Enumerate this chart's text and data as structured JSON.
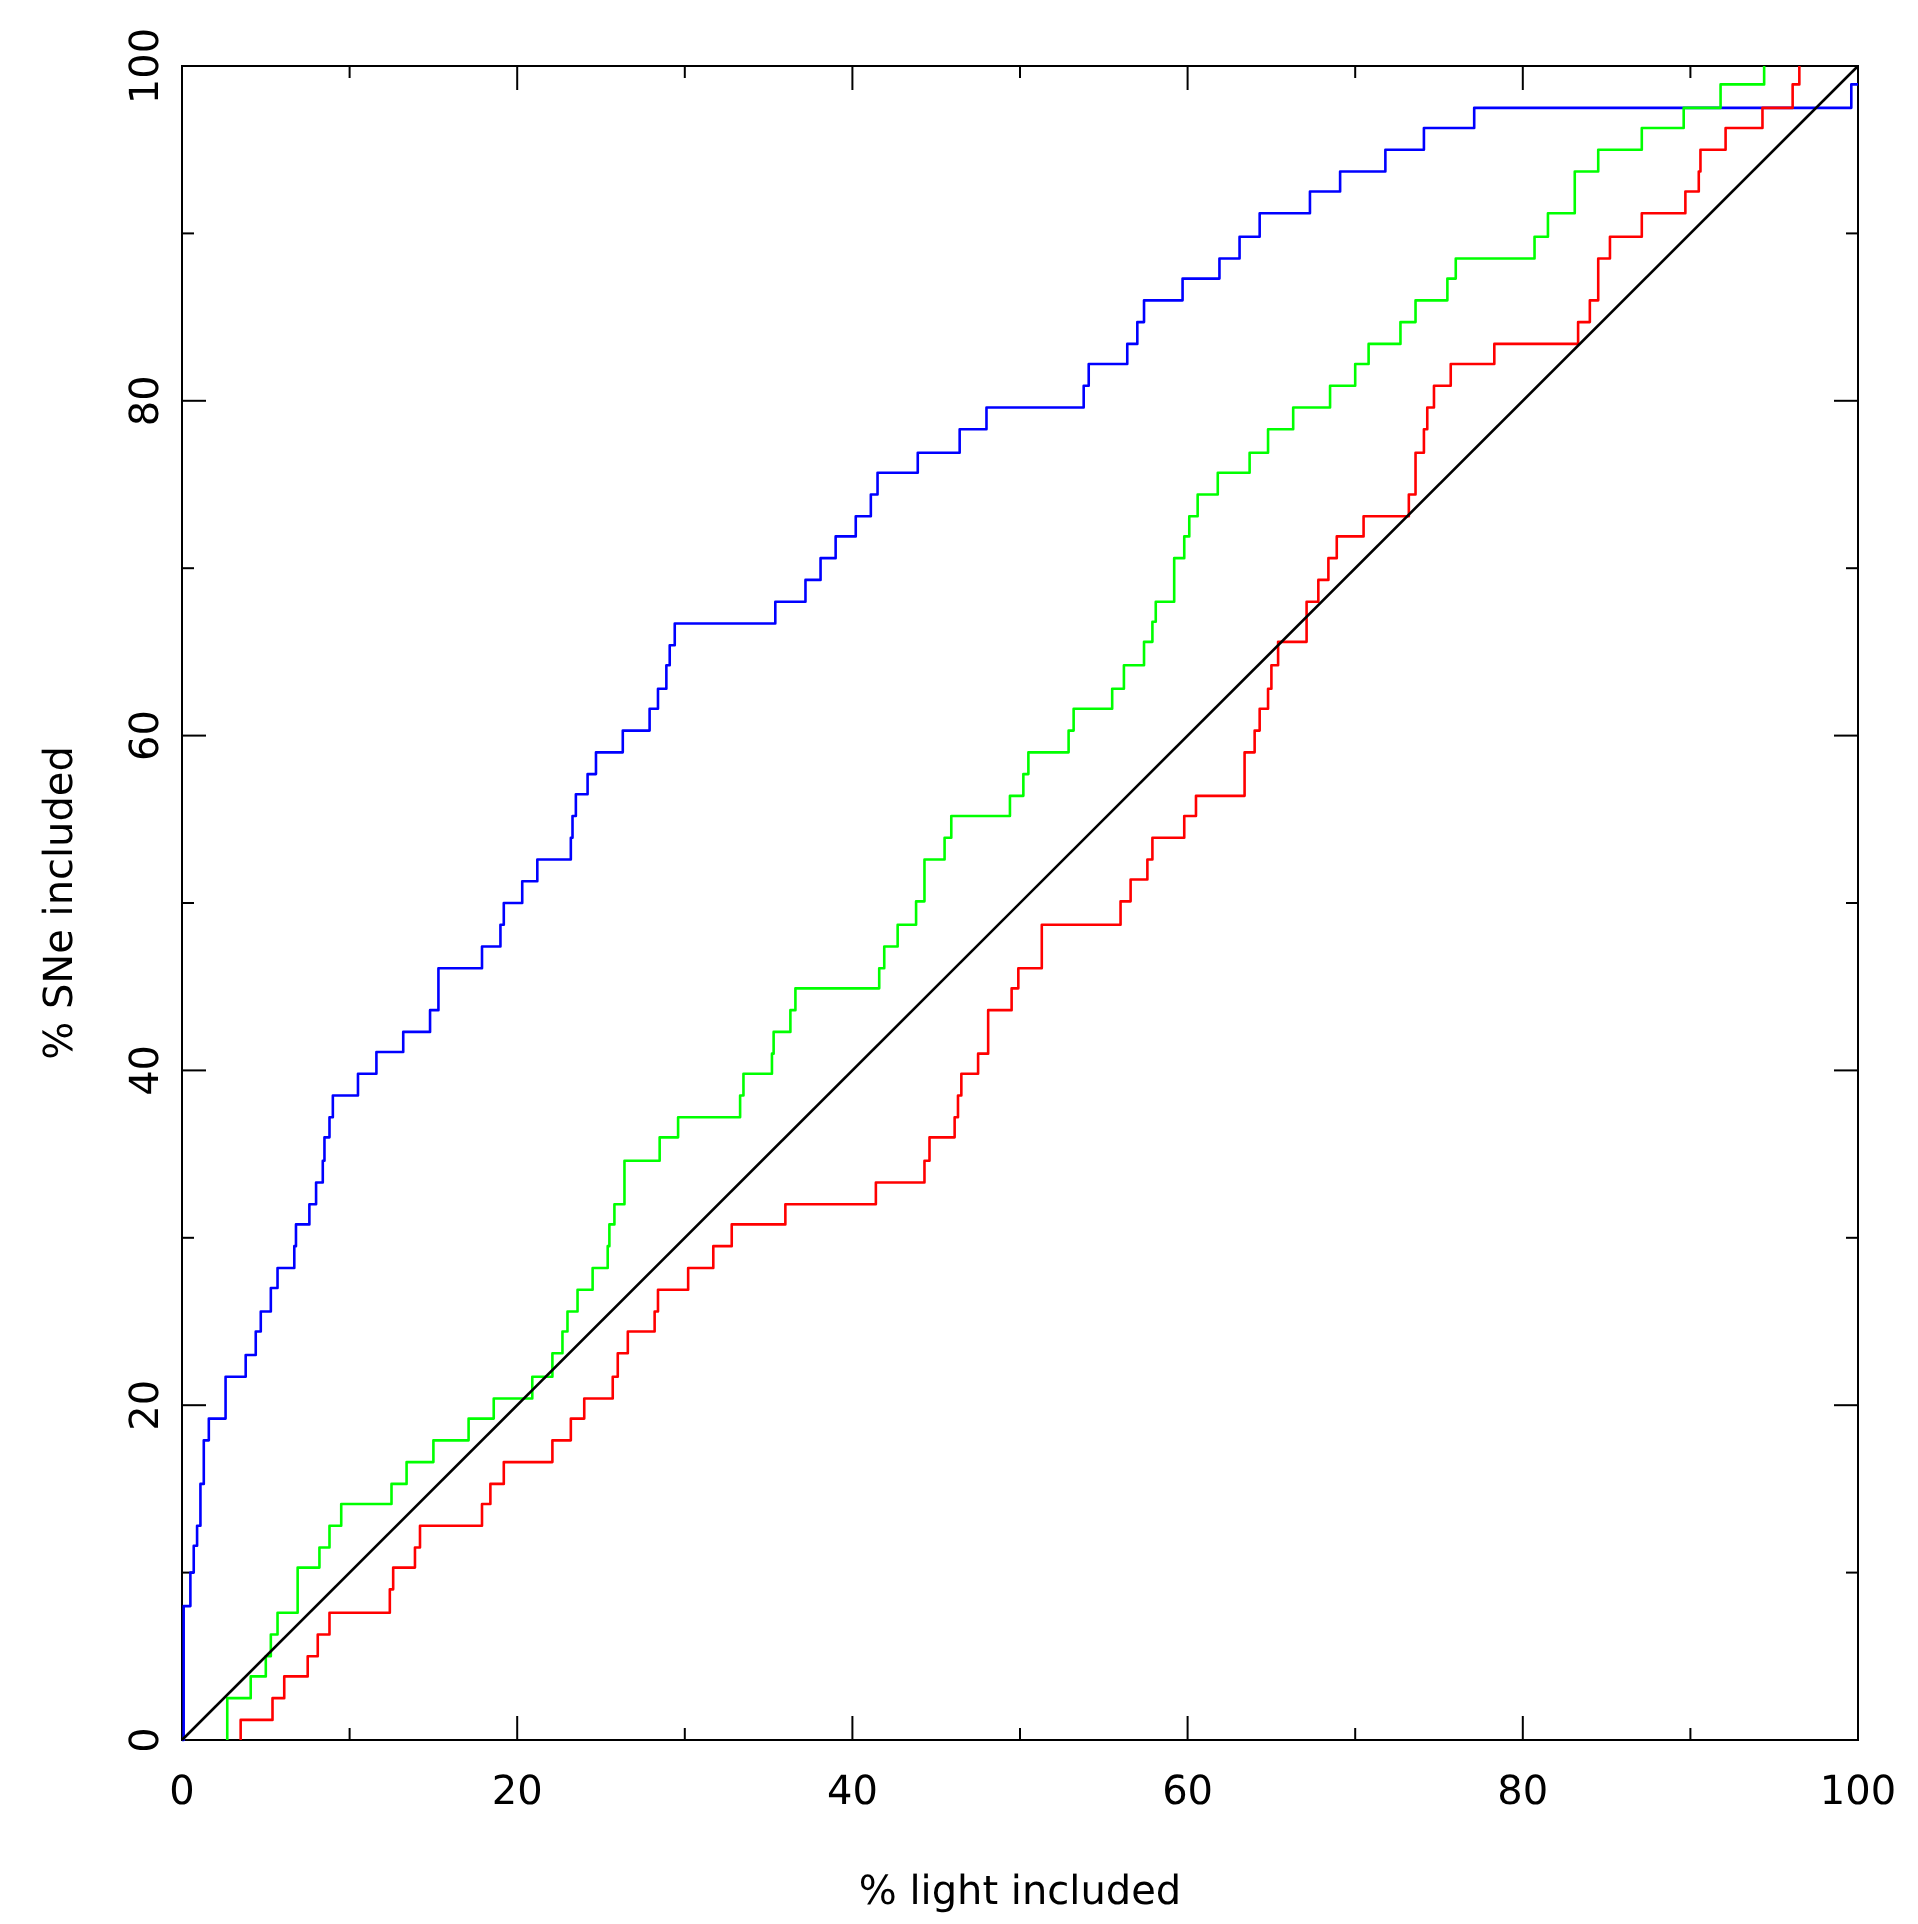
{
  "chart_data": {
    "type": "step",
    "xlabel": "% light included",
    "ylabel": "% SNe included",
    "xlim": [
      0,
      100
    ],
    "ylim": [
      0,
      100
    ],
    "xticks": [
      0,
      {
        "value": 10,
        "label": null
      },
      20,
      {
        "value": 30,
        "label": null
      },
      40,
      {
        "value": 50,
        "label": null
      },
      60,
      {
        "value": 70,
        "label": null
      },
      80,
      {
        "value": 90,
        "label": null
      },
      100
    ],
    "yticks": [
      0,
      {
        "value": 10,
        "label": null
      },
      20,
      {
        "value": 30,
        "label": null
      },
      40,
      {
        "value": 50,
        "label": null
      },
      60,
      {
        "value": 70,
        "label": null
      },
      80,
      {
        "value": 90,
        "label": null
      },
      100
    ],
    "grid": false,
    "marker": "none",
    "line_style": "solid",
    "series": [
      {
        "color": "#0000ff",
        "x": [
          0,
          0.1,
          0.5,
          0.7,
          0.9,
          1.1,
          1.3,
          1.6,
          2.6,
          3.8,
          4.4,
          4.7,
          5.3,
          5.7,
          6.7,
          6.8,
          7.6,
          8.0,
          8.4,
          8.5,
          8.8,
          9.0,
          10.5,
          11.6,
          13.2,
          14.8,
          15.3,
          17.9,
          19.0,
          19.2,
          20.3,
          21.2,
          23.2,
          23.3,
          23.5,
          24.2,
          24.7,
          26.3,
          27.9,
          28.4,
          28.9,
          29.1,
          29.4,
          35.4,
          37.2,
          38.1,
          39.0,
          40.2,
          41.1,
          41.5,
          43.9,
          46.4,
          48.0,
          53.8,
          54.1,
          56.4,
          57.0,
          57.4,
          59.7,
          61.9,
          63.1,
          64.3,
          67.3,
          69.1,
          71.8,
          74.1,
          77.1,
          99.6,
          100
        ],
        "values": [
          0,
          8,
          10,
          11.6,
          12.8,
          15.3,
          17.9,
          19.2,
          21.7,
          23.0,
          24.4,
          25.6,
          27.0,
          28.2,
          29.5,
          30.8,
          32.0,
          33.3,
          34.6,
          36.0,
          37.2,
          38.5,
          39.8,
          41.1,
          42.3,
          43.6,
          46.1,
          47.4,
          48.7,
          50.0,
          51.3,
          52.6,
          53.9,
          55.2,
          56.5,
          57.7,
          59.0,
          60.3,
          61.6,
          62.8,
          64.2,
          65.4,
          66.7,
          68.0,
          69.3,
          70.6,
          71.9,
          73.1,
          74.4,
          75.7,
          76.9,
          78.3,
          79.6,
          80.9,
          82.2,
          83.4,
          84.7,
          86.0,
          87.3,
          88.5,
          89.8,
          91.2,
          92.5,
          93.7,
          95.0,
          96.3,
          97.5,
          98.9,
          98.9
        ]
      },
      {
        "color": "#00ff00",
        "x": [
          2.7,
          2.7,
          4.1,
          5.0,
          5.3,
          5.7,
          6.9,
          8.2,
          8.8,
          9.5,
          12.5,
          13.4,
          15.0,
          17.1,
          18.6,
          20.9,
          22.1,
          22.7,
          23.0,
          23.6,
          24.5,
          25.4,
          25.5,
          25.8,
          26.4,
          28.5,
          29.6,
          33.3,
          33.5,
          35.2,
          35.3,
          36.3,
          36.6,
          41.6,
          41.9,
          42.7,
          43.8,
          44.3,
          45.5,
          45.9,
          49.4,
          50.2,
          50.5,
          52.9,
          53.2,
          55.5,
          56.2,
          57.4,
          57.9,
          58.1,
          59.2,
          59.8,
          60.1,
          60.6,
          61.8,
          63.7,
          64.8,
          66.3,
          68.5,
          70.0,
          70.8,
          72.7,
          73.6,
          75.5,
          76.0,
          80.7,
          81.5,
          83.1,
          84.5,
          87.1,
          89.6,
          91.8,
          94.4
        ],
        "values": [
          0,
          2.5,
          3.8,
          5.0,
          6.3,
          7.6,
          10.3,
          11.5,
          12.8,
          14.1,
          15.3,
          16.6,
          17.9,
          19.2,
          20.4,
          21.7,
          23.1,
          24.4,
          25.6,
          26.9,
          28.2,
          29.5,
          30.8,
          32.0,
          34.6,
          36.0,
          37.2,
          38.5,
          39.8,
          41.0,
          42.3,
          43.6,
          44.9,
          46.1,
          47.4,
          48.7,
          50.1,
          52.6,
          53.9,
          55.2,
          56.4,
          57.7,
          59.0,
          60.3,
          61.6,
          62.8,
          64.2,
          65.6,
          66.8,
          68.0,
          70.6,
          71.9,
          73.1,
          74.4,
          75.7,
          76.9,
          78.3,
          79.6,
          80.9,
          82.2,
          83.4,
          84.7,
          86.0,
          87.3,
          88.5,
          89.8,
          91.2,
          93.7,
          95.0,
          96.3,
          97.5,
          98.9,
          100
        ]
      },
      {
        "color": "#ff0000",
        "x": [
          3.5,
          3.5,
          5.4,
          6.1,
          7.5,
          8.1,
          8.8,
          12.4,
          12.6,
          13.9,
          14.2,
          17.9,
          18.4,
          19.2,
          22.1,
          23.2,
          24.0,
          25.7,
          26.0,
          26.6,
          28.2,
          28.4,
          30.2,
          31.7,
          32.8,
          36.0,
          41.4,
          44.3,
          44.6,
          46.1,
          46.3,
          46.5,
          47.5,
          48.1,
          49.5,
          49.9,
          51.3,
          56.0,
          56.6,
          57.6,
          57.9,
          59.8,
          60.5,
          63.4,
          64.0,
          64.3,
          64.8,
          65.0,
          65.4,
          67.1,
          67.8,
          68.4,
          68.9,
          70.5,
          73.2,
          73.6,
          74.1,
          74.3,
          74.7,
          75.7,
          78.3,
          83.3,
          84.0,
          84.5,
          85.2,
          87.1,
          89.7,
          90.5,
          90.6,
          92.1,
          94.3,
          96.1,
          96.5
        ],
        "values": [
          0,
          1.2,
          2.5,
          3.8,
          5.0,
          6.3,
          7.6,
          9.0,
          10.3,
          11.5,
          12.8,
          14.1,
          15.3,
          16.6,
          17.9,
          19.2,
          20.4,
          21.7,
          23.1,
          24.4,
          25.6,
          26.9,
          28.2,
          29.5,
          30.8,
          32.0,
          33.3,
          34.6,
          36.0,
          37.2,
          38.5,
          39.8,
          41.0,
          43.6,
          44.9,
          46.1,
          48.7,
          50.1,
          51.4,
          52.6,
          53.9,
          55.2,
          56.4,
          59.0,
          60.3,
          61.6,
          62.8,
          64.2,
          65.6,
          68.0,
          69.3,
          70.6,
          71.9,
          73.1,
          74.4,
          76.9,
          78.3,
          79.6,
          80.9,
          82.2,
          83.4,
          84.7,
          86.0,
          88.5,
          89.8,
          91.2,
          92.5,
          93.7,
          95.0,
          96.3,
          97.5,
          98.9,
          100
        ]
      },
      {
        "type": "line",
        "color": "#000000",
        "x": [
          0,
          100
        ],
        "values": [
          0,
          100
        ]
      }
    ]
  }
}
